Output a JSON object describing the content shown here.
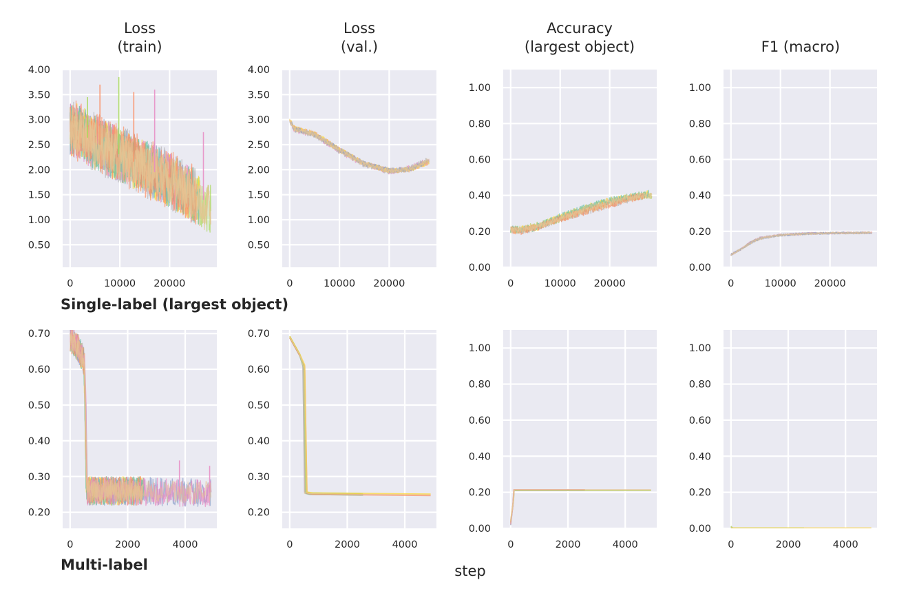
{
  "column_titles": [
    [
      "Loss",
      "(train)"
    ],
    [
      "Loss",
      "(val.)"
    ],
    [
      "Accuracy",
      "(largest object)"
    ],
    [
      "F1 (macro)"
    ]
  ],
  "row_labels": [
    "Single-label (largest object)",
    "Multi-label"
  ],
  "shared_xlabel": "step",
  "series_colors": [
    "#8da0cb",
    "#fc8d62",
    "#a6d854",
    "#e78ac3",
    "#ffd92f",
    "#e5c494",
    "#b3b3b3",
    "#66c2a5"
  ],
  "style": {
    "panel_bg": "#eaeaf2",
    "grid": "#ffffff",
    "text": "#262626"
  },
  "chart_data": [
    {
      "type": "line",
      "title": "Loss (train)",
      "row": "Single-label (largest object)",
      "xlim": [
        -1500,
        29500
      ],
      "ylim": [
        0.05,
        4.0
      ],
      "xticks": [
        0,
        10000,
        20000
      ],
      "xtick_labels": [
        "0",
        "10000",
        "20000"
      ],
      "yticks": [
        0.5,
        1.0,
        1.5,
        2.0,
        2.5,
        3.0,
        3.5,
        4.0
      ],
      "ytick_labels": [
        "0.50",
        "1.00",
        "1.50",
        "2.00",
        "2.50",
        "3.00",
        "3.50",
        "4.00"
      ],
      "noisy": true,
      "series": [
        {
          "x_end": 24800,
          "mean": [
            [
              0,
              2.85
            ],
            [
              5000,
              2.55
            ],
            [
              10000,
              2.3
            ],
            [
              15000,
              2.05
            ],
            [
              20000,
              1.8
            ],
            [
              24800,
              1.5
            ]
          ],
          "spread": 0.55,
          "spikes": [
            [
              6000,
              3.7
            ],
            [
              12800,
              3.55
            ]
          ]
        },
        {
          "x_end": 28300,
          "mean": [
            [
              0,
              2.85
            ],
            [
              5000,
              2.55
            ],
            [
              10000,
              2.3
            ],
            [
              15000,
              2.05
            ],
            [
              20000,
              1.8
            ],
            [
              24000,
              1.5
            ],
            [
              28300,
              1.2
            ]
          ],
          "spread": 0.5,
          "spikes": [
            [
              9800,
              3.85
            ],
            [
              3500,
              3.45
            ]
          ]
        },
        {
          "x_end": 26000,
          "mean": [
            [
              0,
              2.85
            ],
            [
              5000,
              2.55
            ],
            [
              10000,
              2.3
            ],
            [
              15000,
              2.05
            ],
            [
              20000,
              1.8
            ],
            [
              26000,
              1.4
            ]
          ],
          "spread": 0.55,
          "spikes": [
            [
              17000,
              3.6
            ],
            [
              26800,
              2.75
            ]
          ]
        },
        {
          "x_end": 25500,
          "mean": [
            [
              0,
              2.85
            ],
            [
              5000,
              2.55
            ],
            [
              10000,
              2.3
            ],
            [
              15000,
              2.05
            ],
            [
              20000,
              1.8
            ],
            [
              25500,
              1.45
            ]
          ],
          "spread": 0.6,
          "spikes": []
        }
      ]
    },
    {
      "type": "line",
      "title": "Loss (val.)",
      "row": "Single-label (largest object)",
      "xlim": [
        -1500,
        29500
      ],
      "ylim": [
        0.05,
        4.0
      ],
      "xticks": [
        0,
        10000,
        20000
      ],
      "xtick_labels": [
        "0",
        "10000",
        "20000"
      ],
      "yticks": [
        0.5,
        1.0,
        1.5,
        2.0,
        2.5,
        3.0,
        3.5,
        4.0
      ],
      "ytick_labels": [
        "0.50",
        "1.00",
        "1.50",
        "2.00",
        "2.50",
        "3.00",
        "3.50",
        "4.00"
      ],
      "noisy": true,
      "series": [
        {
          "x_end": 28000,
          "mean": [
            [
              0,
              2.98
            ],
            [
              1000,
              2.82
            ],
            [
              5000,
              2.72
            ],
            [
              10000,
              2.4
            ],
            [
              15000,
              2.12
            ],
            [
              20000,
              1.98
            ],
            [
              24000,
              2.0
            ],
            [
              28000,
              2.15
            ]
          ],
          "spread": 0.05,
          "spikes": []
        },
        {
          "x_end": 28000,
          "mean": [
            [
              0,
              2.98
            ],
            [
              1000,
              2.8
            ],
            [
              5000,
              2.7
            ],
            [
              10000,
              2.38
            ],
            [
              15000,
              2.1
            ],
            [
              20000,
              1.97
            ],
            [
              24000,
              2.02
            ],
            [
              28000,
              2.2
            ]
          ],
          "spread": 0.06,
          "spikes": []
        },
        {
          "x_end": 27000,
          "mean": [
            [
              0,
              2.98
            ],
            [
              1000,
              2.81
            ],
            [
              5000,
              2.7
            ],
            [
              10000,
              2.4
            ],
            [
              15000,
              2.12
            ],
            [
              20000,
              1.99
            ],
            [
              24000,
              2.0
            ],
            [
              27000,
              2.12
            ]
          ],
          "spread": 0.05,
          "spikes": []
        }
      ]
    },
    {
      "type": "line",
      "title": "Accuracy (largest object)",
      "row": "Single-label (largest object)",
      "xlim": [
        -1500,
        29500
      ],
      "ylim": [
        0.0,
        1.1
      ],
      "xticks": [
        0,
        10000,
        20000
      ],
      "xtick_labels": [
        "0",
        "10000",
        "20000"
      ],
      "yticks": [
        0.0,
        0.2,
        0.4,
        0.6,
        0.8,
        1.0
      ],
      "ytick_labels": [
        "0.00",
        "0.20",
        "0.40",
        "0.60",
        "0.80",
        "1.00"
      ],
      "noisy": true,
      "series": [
        {
          "x_end": 28500,
          "mean": [
            [
              0,
              0.21
            ],
            [
              2000,
              0.21
            ],
            [
              5000,
              0.23
            ],
            [
              10000,
              0.27
            ],
            [
              15000,
              0.32
            ],
            [
              20000,
              0.36
            ],
            [
              24000,
              0.39
            ],
            [
              28500,
              0.4
            ]
          ],
          "spread": 0.02,
          "spikes": []
        },
        {
          "x_end": 28000,
          "mean": [
            [
              0,
              0.21
            ],
            [
              2000,
              0.21
            ],
            [
              5000,
              0.22
            ],
            [
              10000,
              0.28
            ],
            [
              15000,
              0.33
            ],
            [
              20000,
              0.37
            ],
            [
              24000,
              0.39
            ],
            [
              28000,
              0.41
            ]
          ],
          "spread": 0.02,
          "spikes": []
        },
        {
          "x_end": 27000,
          "mean": [
            [
              0,
              0.21
            ],
            [
              2000,
              0.2
            ],
            [
              5000,
              0.22
            ],
            [
              10000,
              0.27
            ],
            [
              15000,
              0.31
            ],
            [
              20000,
              0.35
            ],
            [
              27000,
              0.4
            ]
          ],
          "spread": 0.02,
          "spikes": []
        }
      ]
    },
    {
      "type": "line",
      "title": "F1 (macro)",
      "row": "Single-label (largest object)",
      "xlim": [
        -1500,
        29500
      ],
      "ylim": [
        0.0,
        1.1
      ],
      "xticks": [
        0,
        10000,
        20000
      ],
      "xtick_labels": [
        "0",
        "10000",
        "20000"
      ],
      "yticks": [
        0.0,
        0.2,
        0.4,
        0.6,
        0.8,
        1.0
      ],
      "ytick_labels": [
        "0.00",
        "0.20",
        "0.40",
        "0.60",
        "0.80",
        "1.00"
      ],
      "noisy": true,
      "series": [
        {
          "x_end": 28500,
          "mean": [
            [
              0,
              0.07
            ],
            [
              2000,
              0.1
            ],
            [
              4000,
              0.14
            ],
            [
              6000,
              0.165
            ],
            [
              10000,
              0.18
            ],
            [
              15000,
              0.188
            ],
            [
              20000,
              0.19
            ],
            [
              28500,
              0.193
            ]
          ],
          "spread": 0.006,
          "spikes": []
        },
        {
          "x_end": 28000,
          "mean": [
            [
              0,
              0.07
            ],
            [
              2000,
              0.1
            ],
            [
              4000,
              0.135
            ],
            [
              6000,
              0.16
            ],
            [
              10000,
              0.178
            ],
            [
              15000,
              0.186
            ],
            [
              20000,
              0.19
            ],
            [
              28000,
              0.192
            ]
          ],
          "spread": 0.006,
          "spikes": []
        }
      ]
    },
    {
      "type": "line",
      "title": "Loss (train)",
      "row": "Multi-label",
      "xlim": [
        -260,
        5100
      ],
      "ylim": [
        0.155,
        0.71
      ],
      "xticks": [
        0,
        2000,
        4000
      ],
      "xtick_labels": [
        "0",
        "2000",
        "4000"
      ],
      "yticks": [
        0.2,
        0.3,
        0.4,
        0.5,
        0.6,
        0.7
      ],
      "ytick_labels": [
        "0.20",
        "0.30",
        "0.40",
        "0.50",
        "0.60",
        "0.70"
      ],
      "noisy": true,
      "series": [
        {
          "x_end": 2550,
          "mean": [
            [
              0,
              0.69
            ],
            [
              300,
              0.655
            ],
            [
              480,
              0.625
            ],
            [
              560,
              0.26
            ],
            [
              2550,
              0.26
            ]
          ],
          "spread": 0.04,
          "spikes": []
        },
        {
          "x_end": 2500,
          "mean": [
            [
              0,
              0.69
            ],
            [
              300,
              0.655
            ],
            [
              500,
              0.62
            ],
            [
              580,
              0.26
            ],
            [
              2500,
              0.26
            ]
          ],
          "spread": 0.04,
          "spikes": []
        },
        {
          "x_end": 4900,
          "mean": [
            [
              0,
              0.69
            ],
            [
              300,
              0.655
            ],
            [
              520,
              0.62
            ],
            [
              600,
              0.26
            ],
            [
              4900,
              0.255
            ]
          ],
          "spread": 0.04,
          "spikes": [
            [
              3800,
              0.345
            ],
            [
              4850,
              0.33
            ]
          ]
        }
      ]
    },
    {
      "type": "line",
      "title": "Loss (val.)",
      "row": "Multi-label",
      "xlim": [
        -260,
        5100
      ],
      "ylim": [
        0.155,
        0.71
      ],
      "xticks": [
        0,
        2000,
        4000
      ],
      "xtick_labels": [
        "0",
        "2000",
        "4000"
      ],
      "yticks": [
        0.2,
        0.3,
        0.4,
        0.5,
        0.6,
        0.7
      ],
      "ytick_labels": [
        "0.20",
        "0.30",
        "0.40",
        "0.50",
        "0.60",
        "0.70"
      ],
      "noisy": false,
      "series": [
        {
          "x_end": 2500,
          "mean": [
            [
              0,
              0.69
            ],
            [
              350,
              0.64
            ],
            [
              460,
              0.61
            ],
            [
              520,
              0.255
            ],
            [
              700,
              0.252
            ],
            [
              2500,
              0.25
            ]
          ],
          "spread": 0,
          "spikes": []
        },
        {
          "x_end": 2550,
          "mean": [
            [
              0,
              0.69
            ],
            [
              350,
              0.64
            ],
            [
              500,
              0.6
            ],
            [
              560,
              0.255
            ],
            [
              700,
              0.252
            ],
            [
              2550,
              0.25
            ]
          ],
          "spread": 0,
          "spikes": []
        },
        {
          "x_end": 4900,
          "mean": [
            [
              0,
              0.69
            ],
            [
              350,
              0.64
            ],
            [
              520,
              0.61
            ],
            [
              600,
              0.255
            ],
            [
              800,
              0.252
            ],
            [
              4900,
              0.249
            ]
          ],
          "spread": 0,
          "spikes": []
        }
      ]
    },
    {
      "type": "line",
      "title": "Accuracy (largest object)",
      "row": "Multi-label",
      "xlim": [
        -260,
        5100
      ],
      "ylim": [
        0.0,
        1.1
      ],
      "xticks": [
        0,
        2000,
        4000
      ],
      "xtick_labels": [
        "0",
        "2000",
        "4000"
      ],
      "yticks": [
        0.0,
        0.2,
        0.4,
        0.6,
        0.8,
        1.0
      ],
      "ytick_labels": [
        "0.00",
        "0.20",
        "0.40",
        "0.60",
        "0.80",
        "1.00"
      ],
      "noisy": false,
      "series": [
        {
          "x_end": 2600,
          "mean": [
            [
              0,
              0.03
            ],
            [
              80,
              0.13
            ],
            [
              110,
              0.212
            ],
            [
              2600,
              0.212
            ]
          ],
          "spread": 0,
          "spikes": []
        },
        {
          "x_end": 2550,
          "mean": [
            [
              0,
              0.02
            ],
            [
              90,
              0.15
            ],
            [
              115,
              0.212
            ],
            [
              2550,
              0.212
            ]
          ],
          "spread": 0,
          "spikes": []
        },
        {
          "x_end": 4900,
          "mean": [
            [
              0,
              0.04
            ],
            [
              100,
              0.16
            ],
            [
              120,
              0.212
            ],
            [
              4900,
              0.212
            ]
          ],
          "spread": 0,
          "spikes": []
        }
      ]
    },
    {
      "type": "line",
      "title": "F1 (macro)",
      "row": "Multi-label",
      "xlim": [
        -260,
        5100
      ],
      "ylim": [
        0.0,
        1.1
      ],
      "xticks": [
        0,
        2000,
        4000
      ],
      "xtick_labels": [
        "0",
        "2000",
        "4000"
      ],
      "yticks": [
        0.0,
        0.2,
        0.4,
        0.6,
        0.8,
        1.0
      ],
      "ytick_labels": [
        "0.00",
        "0.20",
        "0.40",
        "0.60",
        "0.80",
        "1.00"
      ],
      "noisy": false,
      "series": [
        {
          "x_end": 2550,
          "mean": [
            [
              0,
              0.01
            ],
            [
              60,
              0.0
            ],
            [
              2550,
              0.0
            ]
          ],
          "spread": 0,
          "spikes": []
        },
        {
          "x_end": 4900,
          "mean": [
            [
              0,
              0.0
            ],
            [
              4900,
              0.0
            ]
          ],
          "spread": 0,
          "spikes": []
        }
      ]
    }
  ]
}
